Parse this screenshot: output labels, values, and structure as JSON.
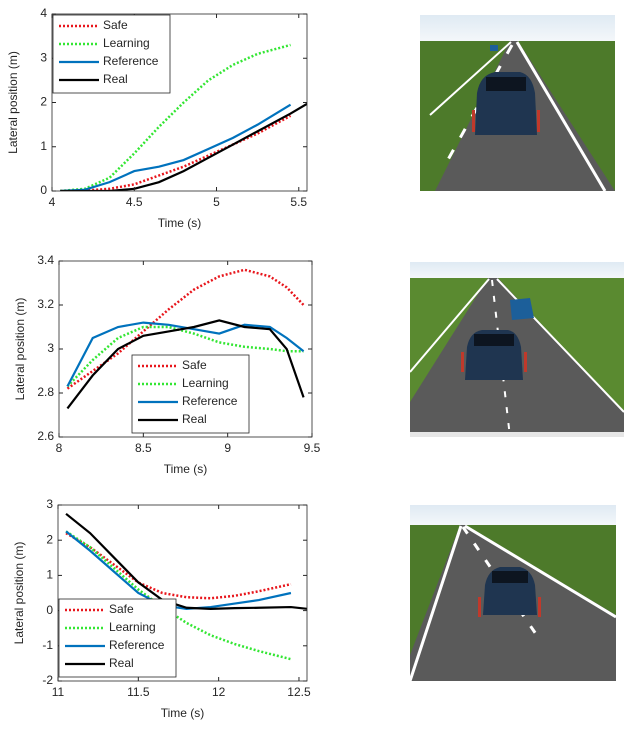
{
  "chart_data": [
    {
      "type": "line",
      "xlabel": "Time (s)",
      "ylabel": "Lateral position (m)",
      "x": [
        4.05,
        4.2,
        4.35,
        4.5,
        4.65,
        4.8,
        4.95,
        5.1,
        5.25,
        5.45,
        5.55
      ],
      "xlim": [
        4,
        5.55
      ],
      "xticks": [
        4,
        4.5,
        5,
        5.5
      ],
      "ylim": [
        0,
        4
      ],
      "yticks": [
        0,
        1,
        2,
        3,
        4
      ],
      "legend": "upper left",
      "series": [
        {
          "name": "Safe",
          "color": "#e8161c",
          "style": "dotted",
          "values": [
            0,
            0.01,
            0.05,
            0.15,
            0.35,
            0.55,
            0.8,
            1.05,
            1.3,
            1.7,
            null
          ]
        },
        {
          "name": "Learning",
          "color": "#33e633",
          "style": "dotted",
          "values": [
            0,
            0.05,
            0.3,
            0.85,
            1.45,
            2.0,
            2.5,
            2.85,
            3.1,
            3.3,
            null
          ]
        },
        {
          "name": "Reference",
          "color": "#0072bd",
          "style": "solid",
          "values": [
            0,
            0.03,
            0.2,
            0.45,
            0.55,
            0.7,
            0.95,
            1.2,
            1.5,
            1.95,
            null
          ]
        },
        {
          "name": "Real",
          "color": "#000000",
          "style": "solid",
          "values": [
            0,
            0,
            0,
            0.05,
            0.2,
            0.45,
            0.75,
            1.05,
            1.35,
            1.75,
            1.97
          ]
        }
      ]
    },
    {
      "type": "line",
      "xlabel": "Time (s)",
      "ylabel": "Lateral position (m)",
      "x": [
        8.05,
        8.2,
        8.35,
        8.5,
        8.65,
        8.8,
        8.95,
        9.1,
        9.25,
        9.35,
        9.45
      ],
      "xlim": [
        8,
        9.5
      ],
      "xticks": [
        8,
        8.5,
        9,
        9.5
      ],
      "ylim": [
        2.6,
        3.4
      ],
      "yticks": [
        2.6,
        2.8,
        3,
        3.2,
        3.4
      ],
      "legend": "lower center",
      "series": [
        {
          "name": "Safe",
          "color": "#e8161c",
          "style": "dotted",
          "values": [
            2.82,
            2.9,
            2.98,
            3.08,
            3.18,
            3.27,
            3.33,
            3.36,
            3.33,
            3.28,
            3.2
          ]
        },
        {
          "name": "Learning",
          "color": "#33e633",
          "style": "dotted",
          "values": [
            2.83,
            2.95,
            3.05,
            3.1,
            3.1,
            3.07,
            3.03,
            3.01,
            3.0,
            2.99,
            2.99
          ]
        },
        {
          "name": "Reference",
          "color": "#0072bd",
          "style": "solid",
          "values": [
            2.83,
            3.05,
            3.1,
            3.12,
            3.11,
            3.09,
            3.07,
            3.11,
            3.1,
            3.05,
            2.99
          ]
        },
        {
          "name": "Real",
          "color": "#000000",
          "style": "solid",
          "values": [
            2.73,
            2.88,
            3.0,
            3.06,
            3.08,
            3.1,
            3.13,
            3.1,
            3.09,
            3.0,
            2.78
          ]
        }
      ]
    },
    {
      "type": "line",
      "xlabel": "Time (s)",
      "ylabel": "Lateral position (m)",
      "x": [
        11.05,
        11.2,
        11.35,
        11.5,
        11.65,
        11.8,
        11.95,
        12.1,
        12.25,
        12.45,
        12.55
      ],
      "xlim": [
        11,
        12.55
      ],
      "xticks": [
        11,
        11.5,
        12,
        12.5
      ],
      "ylim": [
        -2,
        3
      ],
      "yticks": [
        -2,
        -1,
        0,
        1,
        2,
        3
      ],
      "legend": "lower left",
      "series": [
        {
          "name": "Safe",
          "color": "#e8161c",
          "style": "dotted",
          "values": [
            2.2,
            1.8,
            1.3,
            0.8,
            0.5,
            0.38,
            0.35,
            0.42,
            0.55,
            0.75,
            null
          ]
        },
        {
          "name": "Learning",
          "color": "#33e633",
          "style": "dotted",
          "values": [
            2.25,
            1.8,
            1.2,
            0.6,
            0.1,
            -0.35,
            -0.7,
            -0.95,
            -1.15,
            -1.38,
            null
          ]
        },
        {
          "name": "Reference",
          "color": "#0072bd",
          "style": "solid",
          "values": [
            2.25,
            1.7,
            1.1,
            0.5,
            0.15,
            0.05,
            0.1,
            0.2,
            0.3,
            0.5,
            null
          ]
        },
        {
          "name": "Real",
          "color": "#000000",
          "style": "solid",
          "values": [
            2.75,
            2.2,
            1.5,
            0.8,
            0.3,
            0.08,
            0.05,
            0.07,
            0.08,
            0.1,
            0.05
          ]
        }
      ]
    }
  ]
}
